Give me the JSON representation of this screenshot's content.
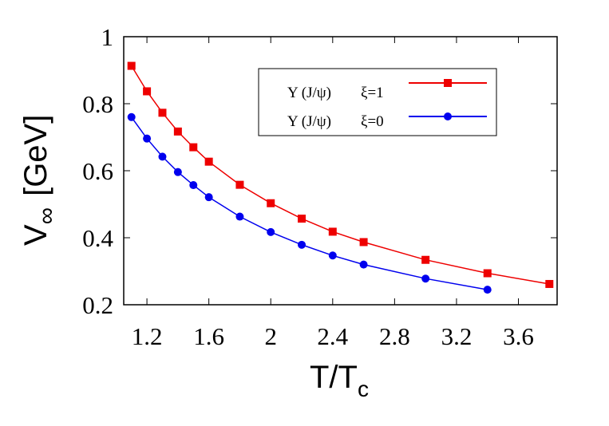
{
  "chart_data": {
    "type": "line",
    "xlabel_main": "T/T",
    "xlabel_sub": "c",
    "ylabel_main": "V",
    "ylabel_sub": "∞",
    "ylabel_unit": "[GeV]",
    "xlim": [
      1.05,
      3.85
    ],
    "ylim": [
      0.2,
      1.0
    ],
    "xticks": [
      1.2,
      1.6,
      2,
      2.4,
      2.8,
      3.2,
      3.6
    ],
    "xtick_labels": [
      "1.2",
      "1.6",
      "2",
      "2.4",
      "2.8",
      "3.2",
      "3.6"
    ],
    "yticks": [
      0.2,
      0.4,
      0.6,
      0.8,
      1.0
    ],
    "ytick_labels": [
      "0.2",
      "0.4",
      "0.6",
      "0.8",
      "1"
    ],
    "grid": false,
    "legend_position": "top-right",
    "series": [
      {
        "name": "Υ (J/ψ)    ξ=1",
        "label_state": "Υ (J/ψ)",
        "label_param": "ξ=1",
        "color": "#ee0000",
        "marker": "square",
        "x": [
          1.1,
          1.2,
          1.3,
          1.4,
          1.5,
          1.6,
          1.8,
          2.0,
          2.2,
          2.4,
          2.6,
          3.0,
          3.4,
          3.8
        ],
        "y": [
          0.913,
          0.837,
          0.773,
          0.717,
          0.67,
          0.627,
          0.558,
          0.503,
          0.457,
          0.418,
          0.387,
          0.334,
          0.294,
          0.262
        ]
      },
      {
        "name": "Υ (J/ψ)    ξ=0",
        "label_state": "Υ (J/ψ)",
        "label_param": "ξ=0",
        "color": "#0000ee",
        "marker": "circle",
        "x": [
          1.1,
          1.2,
          1.3,
          1.4,
          1.5,
          1.6,
          1.8,
          2.0,
          2.2,
          2.4,
          2.6,
          3.0,
          3.4
        ],
        "y": [
          0.76,
          0.696,
          0.642,
          0.596,
          0.557,
          0.521,
          0.463,
          0.417,
          0.379,
          0.347,
          0.32,
          0.278,
          0.245
        ]
      }
    ]
  }
}
